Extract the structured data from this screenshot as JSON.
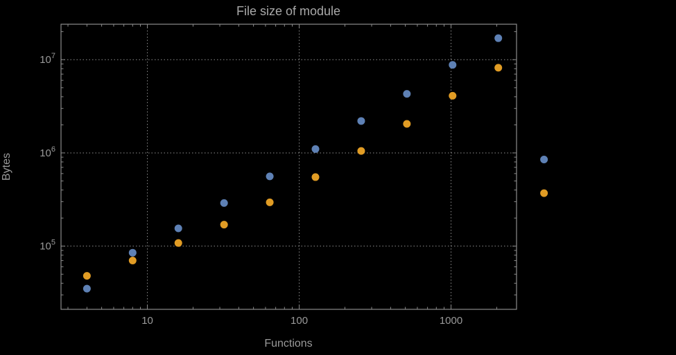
{
  "window": {
    "background": "#000000"
  },
  "chart_data": {
    "type": "scatter",
    "title": "File size of module",
    "xlabel": "Functions",
    "ylabel": "Bytes",
    "x_scale": "log",
    "y_scale": "log",
    "grid": "dotted",
    "xlim": [
      2.7,
      2700
    ],
    "ylim": [
      21000,
      24000000
    ],
    "x_ticks_labeled": [
      10,
      100,
      1000
    ],
    "x_tick_labels": [
      "10",
      "100",
      "1000"
    ],
    "y_ticks_labeled": [
      100000,
      1000000,
      10000000
    ],
    "y_tick_exponents": [
      5,
      6,
      7
    ],
    "y_tick_base": "10",
    "x": [
      4,
      8,
      16,
      32,
      64,
      128,
      256,
      512,
      1024,
      2048,
      4096
    ],
    "series": [
      {
        "name": "series-blue",
        "color": "#5e81b5",
        "values": [
          35000,
          85000,
          155000,
          290000,
          560000,
          1100000,
          2200000,
          4300000,
          8800000,
          17000000,
          850000
        ]
      },
      {
        "name": "series-orange",
        "color": "#e19c24",
        "values": [
          48000,
          70000,
          108000,
          170000,
          295000,
          550000,
          1050000,
          2050000,
          4100000,
          8200000,
          370000
        ]
      }
    ],
    "style": {
      "frame_color": "#8c8c8c",
      "grid_color": "#8f8f8f",
      "tick_color": "#8c8c8c",
      "text_color": "#9a9a9a",
      "title_color": "#a9a9a9",
      "point_radius": 5.5
    }
  }
}
